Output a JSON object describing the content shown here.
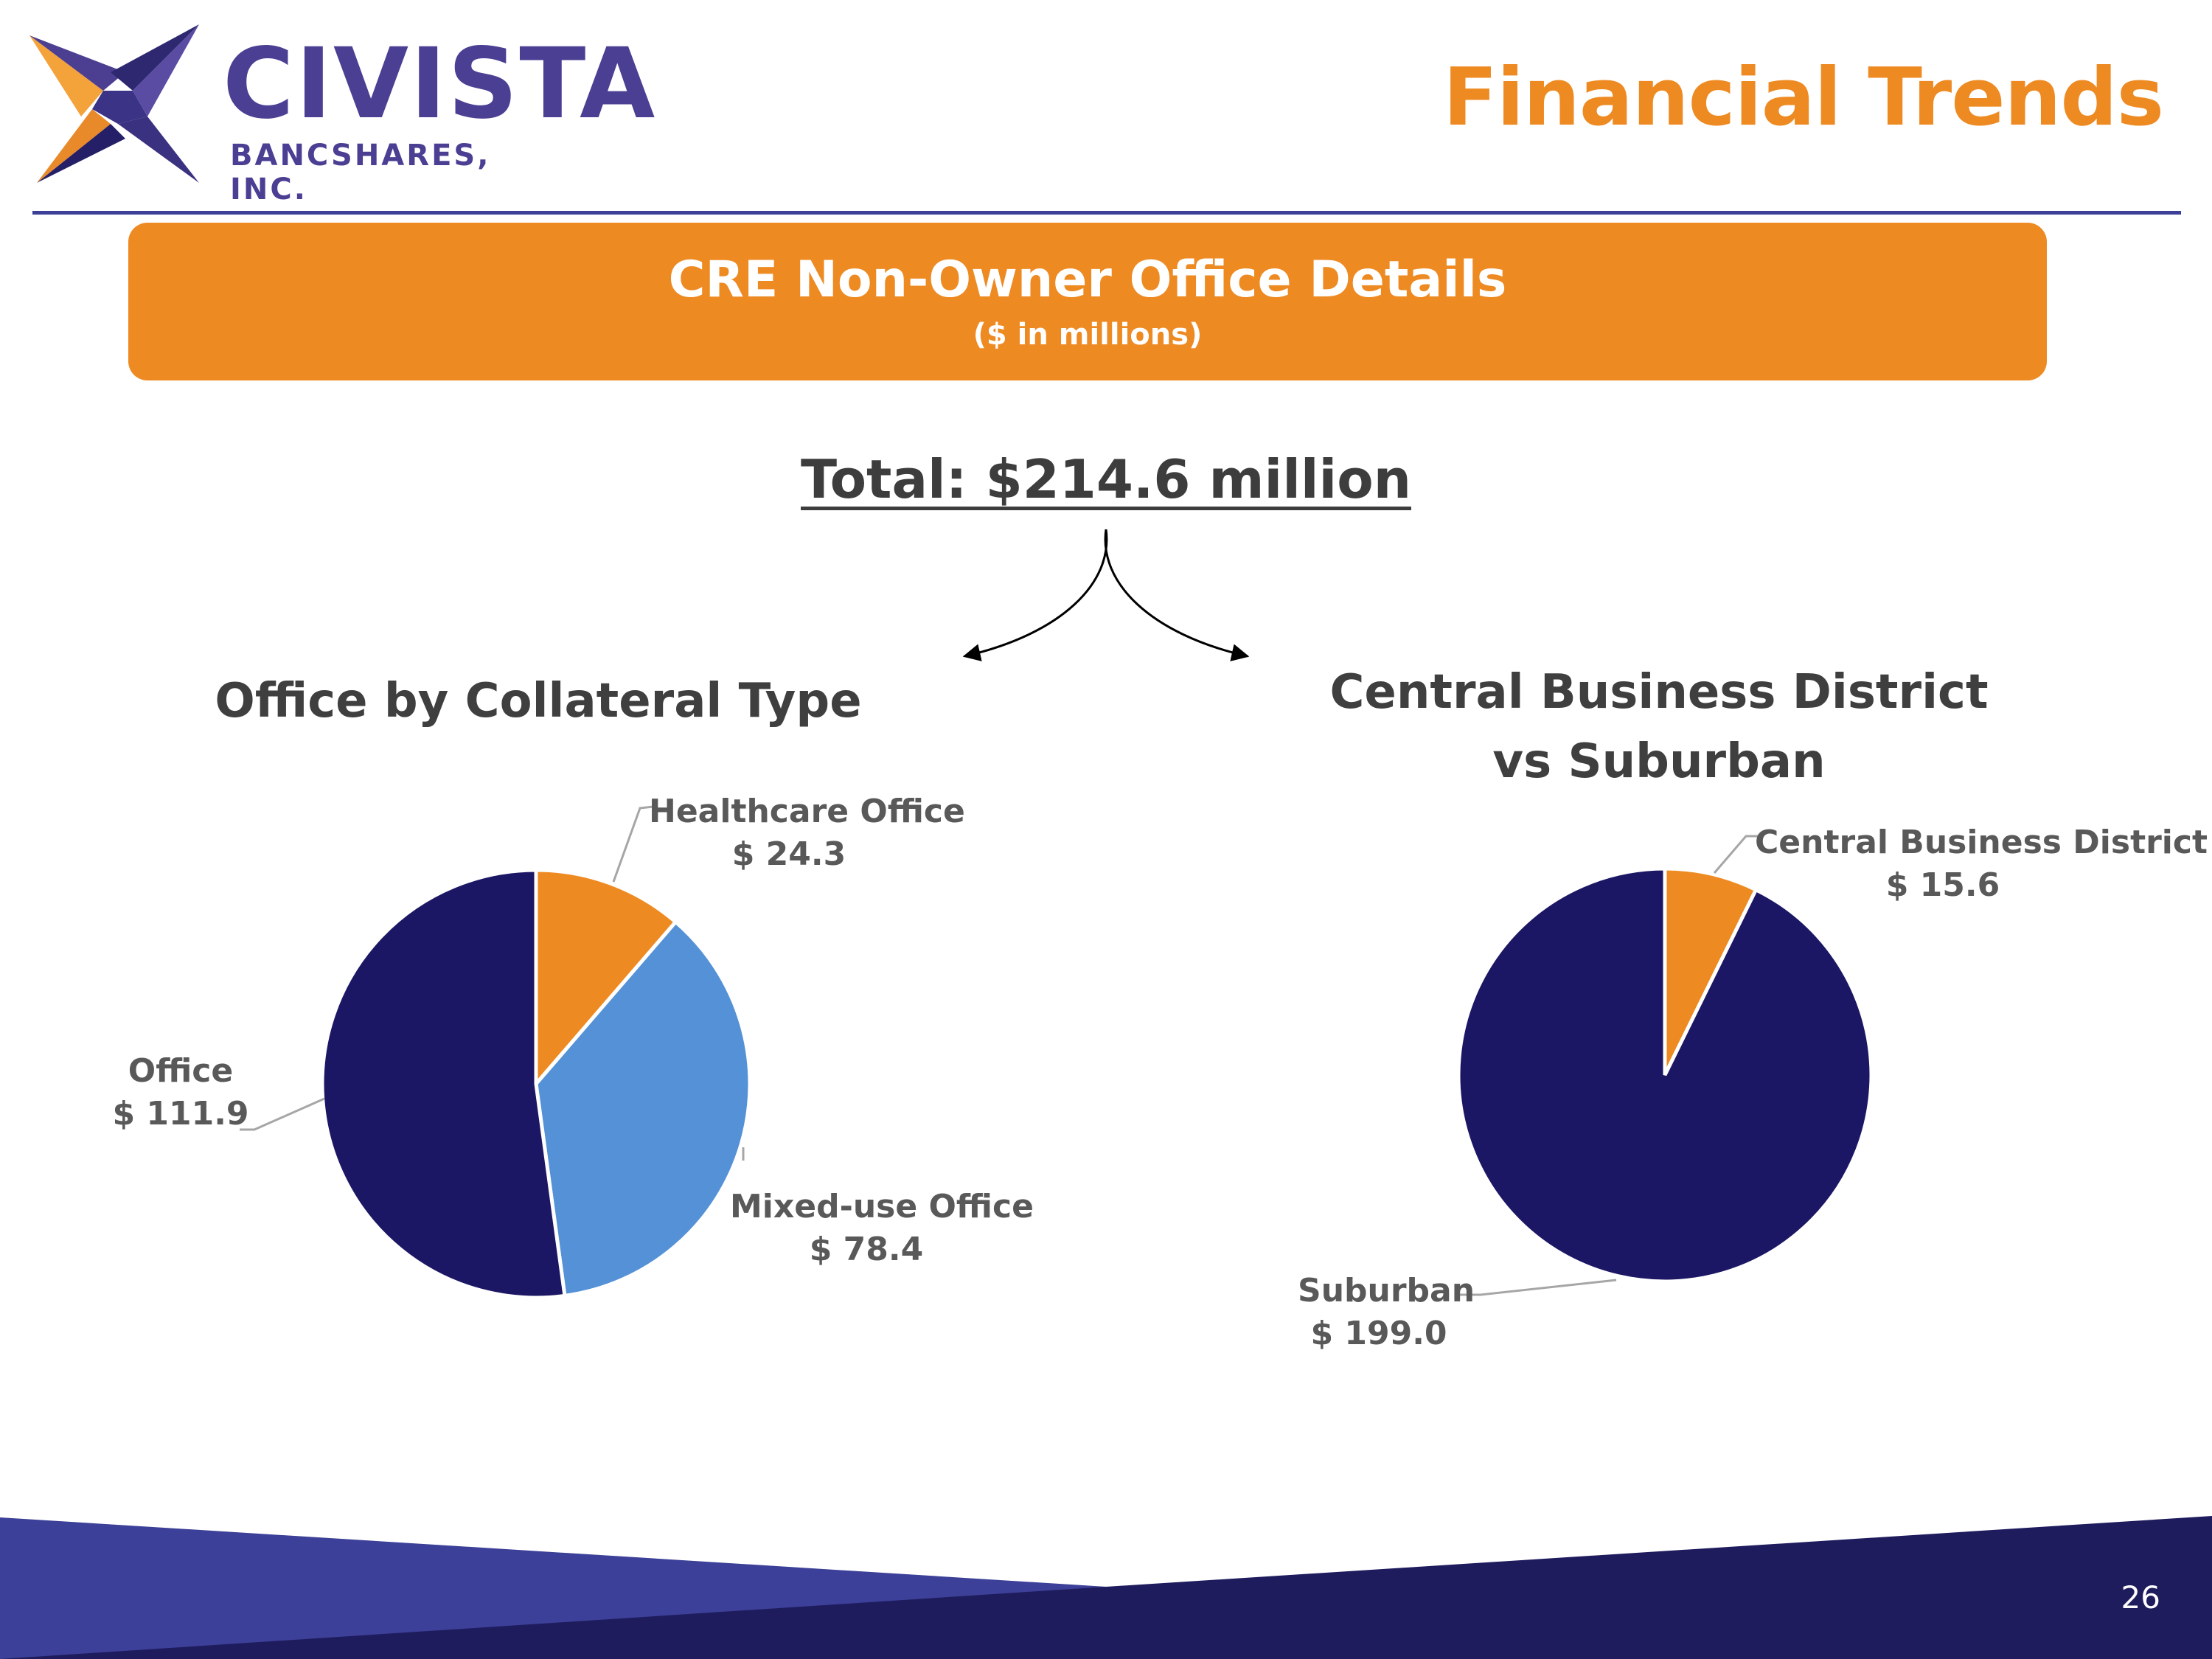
{
  "logo": {
    "name": "CIVISTA",
    "sub": "BANCSHARES, INC."
  },
  "slide_title": "Financial Trends",
  "banner": {
    "title": "CRE Non-Owner Office Details",
    "subtitle": "($ in millions)"
  },
  "total": "Total: $214.6 million",
  "colors": {
    "orange": "#ee8a22",
    "navy": "#1c1764",
    "light_blue": "#5591d6",
    "rule": "#3c4099",
    "footer_dark": "#1f1c5e",
    "footer_light": "#3c4099"
  },
  "chart_data": [
    {
      "type": "pie",
      "title": "Office by Collateral Type",
      "slices": [
        {
          "label": "Healthcare Office",
          "value_text": "$ 24.3",
          "value": 24.3,
          "color": "#ee8a22"
        },
        {
          "label": "Mixed-use Office",
          "value_text": "$ 78.4",
          "value": 78.4,
          "color": "#5591d6"
        },
        {
          "label": "Office",
          "value_text": "$ 111.9",
          "value": 111.9,
          "color": "#1c1764"
        }
      ]
    },
    {
      "type": "pie",
      "title": "Central Business District vs Suburban",
      "title_lines": [
        "Central Business District",
        "vs Suburban"
      ],
      "slices": [
        {
          "label": "Central Business District",
          "value_text": "$ 15.6",
          "value": 15.6,
          "color": "#ee8a22"
        },
        {
          "label": "Suburban",
          "value_text": "$ 199.0",
          "value": 199.0,
          "color": "#1c1764"
        }
      ]
    }
  ],
  "page_number": "26"
}
